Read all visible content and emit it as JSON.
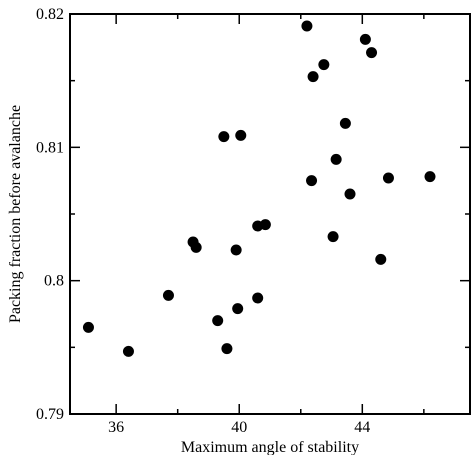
{
  "chart_data": {
    "type": "scatter",
    "title": "",
    "xlabel": "Maximum angle of stability",
    "ylabel": "Packing fraction before avalanche",
    "xlim": [
      34.5,
      47.5
    ],
    "ylim": [
      0.79,
      0.82
    ],
    "x_ticks": [
      36,
      40,
      44
    ],
    "x_tick_labels": [
      "36",
      "40",
      "44"
    ],
    "y_ticks": [
      0.79,
      0.8,
      0.81,
      0.82
    ],
    "y_tick_labels": [
      "0.79",
      "0.8",
      "0.81",
      "0.82"
    ],
    "grid": false,
    "marker_color": "#000000",
    "points": [
      {
        "x": 35.1,
        "y": 0.7965
      },
      {
        "x": 36.4,
        "y": 0.7947
      },
      {
        "x": 37.7,
        "y": 0.7989
      },
      {
        "x": 38.5,
        "y": 0.8029
      },
      {
        "x": 38.6,
        "y": 0.8025
      },
      {
        "x": 39.3,
        "y": 0.797
      },
      {
        "x": 39.6,
        "y": 0.7949
      },
      {
        "x": 39.9,
        "y": 0.8023
      },
      {
        "x": 39.95,
        "y": 0.7979
      },
      {
        "x": 39.5,
        "y": 0.8108
      },
      {
        "x": 40.05,
        "y": 0.8109
      },
      {
        "x": 40.6,
        "y": 0.7987
      },
      {
        "x": 40.6,
        "y": 0.8041
      },
      {
        "x": 40.85,
        "y": 0.8042
      },
      {
        "x": 42.2,
        "y": 0.8191
      },
      {
        "x": 42.4,
        "y": 0.8153
      },
      {
        "x": 42.75,
        "y": 0.8162
      },
      {
        "x": 42.35,
        "y": 0.8075
      },
      {
        "x": 43.05,
        "y": 0.8033
      },
      {
        "x": 43.15,
        "y": 0.8091
      },
      {
        "x": 43.45,
        "y": 0.8118
      },
      {
        "x": 43.6,
        "y": 0.8065
      },
      {
        "x": 44.1,
        "y": 0.8181
      },
      {
        "x": 44.3,
        "y": 0.8171
      },
      {
        "x": 44.6,
        "y": 0.8016
      },
      {
        "x": 44.85,
        "y": 0.8077
      },
      {
        "x": 46.2,
        "y": 0.8078
      }
    ]
  }
}
